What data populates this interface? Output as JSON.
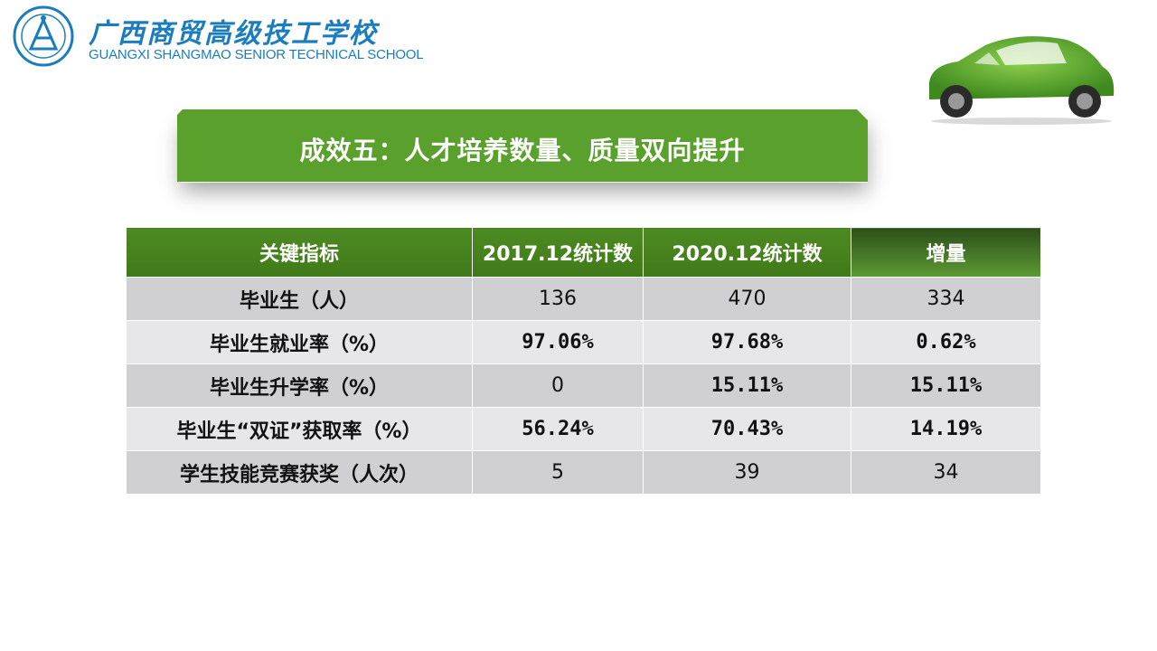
{
  "header": {
    "school_name_cn": "广西商贸高级技工学校",
    "school_name_en": "GUANGXI SHANGMAO SENIOR TECHNICAL SCHOOL"
  },
  "banner": {
    "title": "成效五：人才培养数量、质量双向提升"
  },
  "table": {
    "headers": [
      "关键指标",
      "2017.12统计数",
      "2020.12统计数",
      "增量"
    ],
    "rows": [
      [
        "毕业生（人）",
        "136",
        "470",
        "334"
      ],
      [
        "毕业生就业率（%）",
        "97.06%",
        "97.68%",
        "0.62%"
      ],
      [
        "毕业生升学率（%）",
        "0",
        "15.11%",
        "15.11%"
      ],
      [
        "毕业生“双证”获取率（%）",
        "56.24%",
        "70.43%",
        "14.19%"
      ],
      [
        "学生技能竞赛获奖（人次）",
        "5",
        "39",
        "34"
      ]
    ]
  },
  "colors": {
    "accent_green": "#5aa02c",
    "logo_blue": "#1b7dbe"
  }
}
